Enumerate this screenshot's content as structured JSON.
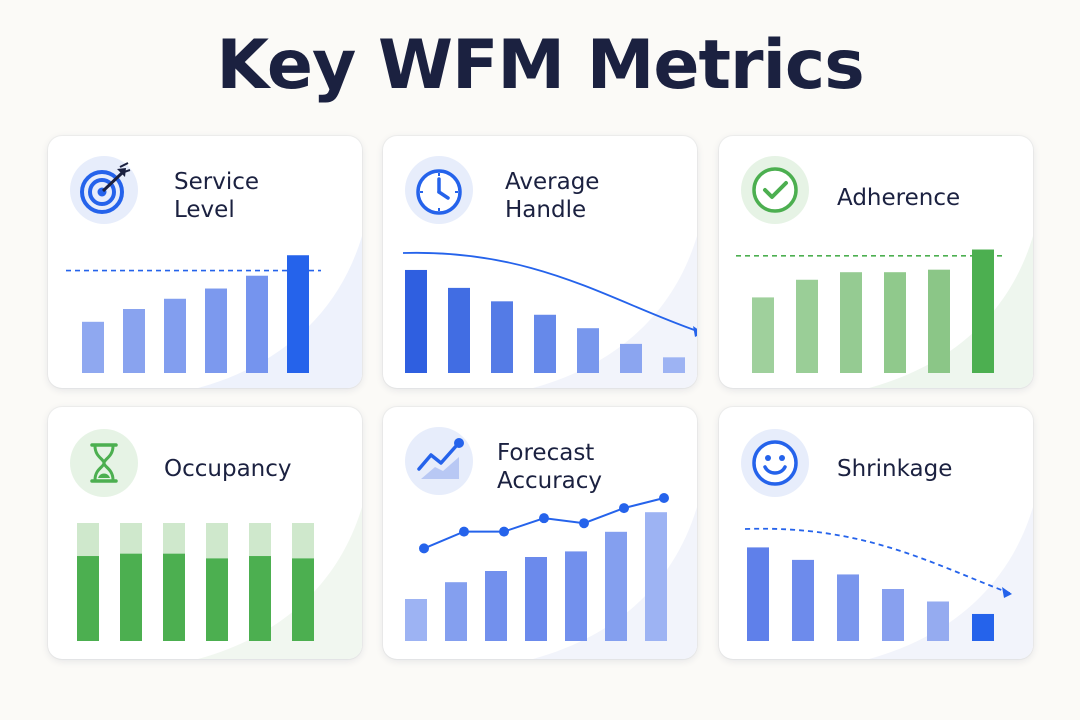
{
  "title": "Key WFM Metrics",
  "colors": {
    "blue": "#2563eb",
    "blue_light": "#8fa8f0",
    "green": "#4caf50",
    "green_light": "#cfe8cc",
    "text": "#1b2140"
  },
  "cards": [
    {
      "id": "service-level",
      "title_lines": [
        "Service",
        "Level"
      ],
      "icon": "target-arrow-icon",
      "chart_data": {
        "type": "bar",
        "values": [
          40,
          50,
          58,
          66,
          76,
          92
        ],
        "target": 80,
        "highlight_last": true
      }
    },
    {
      "id": "average-handle",
      "title_lines": [
        "Average",
        "Handle"
      ],
      "icon": "clock-icon",
      "chart_data": {
        "type": "bar",
        "values": [
          92,
          76,
          64,
          52,
          40,
          26,
          14
        ],
        "trend": "down"
      }
    },
    {
      "id": "adherence",
      "title_lines": [
        "Adherence"
      ],
      "icon": "check-circle-icon",
      "chart_data": {
        "type": "bar",
        "values": [
          60,
          74,
          80,
          80,
          82,
          98
        ],
        "target": 93,
        "highlight_last": true
      }
    },
    {
      "id": "occupancy",
      "title_lines": [
        "Occupancy"
      ],
      "icon": "hourglass-icon",
      "chart_data": {
        "type": "stacked-bar",
        "values": [
          72,
          74,
          74,
          70,
          72,
          70
        ],
        "capacity": 100
      }
    },
    {
      "id": "forecast-accuracy",
      "title_lines": [
        "Forecast",
        "Accuracy"
      ],
      "icon": "trend-up-icon",
      "chart_data": {
        "type": "bar-line",
        "values": [
          30,
          42,
          50,
          60,
          64,
          78,
          92
        ],
        "line": [
          40,
          60,
          60,
          76,
          70,
          88,
          100
        ]
      }
    },
    {
      "id": "shrinkage",
      "title_lines": [
        "Shrinkage"
      ],
      "icon": "smiley-icon",
      "chart_data": {
        "type": "bar",
        "values": [
          90,
          78,
          64,
          50,
          38,
          26
        ],
        "trend": "down"
      }
    }
  ]
}
